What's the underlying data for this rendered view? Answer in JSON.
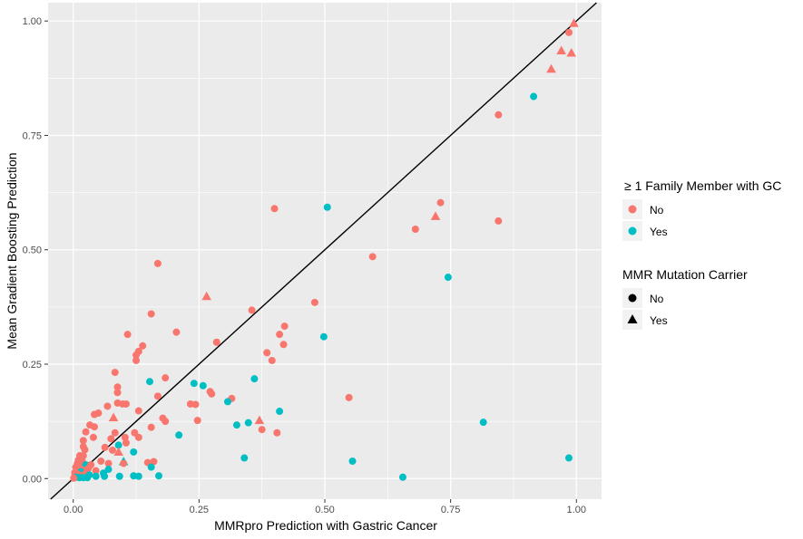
{
  "chart_data": {
    "type": "scatter",
    "xlabel": "MMRpro Prediction with Gastric Cancer",
    "ylabel": "Mean Gradient Boosting Prediction",
    "xlim": [
      -0.05,
      1.05
    ],
    "ylim": [
      -0.045,
      1.04
    ],
    "x_ticks": [
      0.0,
      0.25,
      0.5,
      0.75,
      1.0
    ],
    "x_tick_labels": [
      "0.00",
      "0.25",
      "0.50",
      "0.75",
      "1.00"
    ],
    "y_ticks": [
      0.0,
      0.25,
      0.5,
      0.75,
      1.0
    ],
    "y_tick_labels": [
      "0.00",
      "0.25",
      "0.50",
      "0.75",
      "1.00"
    ],
    "grid": true,
    "reference_line": "y = x",
    "legend_placement": "right",
    "colors": {
      "No": "#F8766D",
      "Yes": "#00BFC4",
      "panel": "#EBEBEB",
      "grid": "#FFFFFF"
    },
    "legends": [
      {
        "title": "≥ 1 Family Member with GC",
        "kind": "color",
        "entries": [
          {
            "label": "No",
            "color": "#F8766D"
          },
          {
            "label": "Yes",
            "color": "#00BFC4"
          }
        ]
      },
      {
        "title": "MMR Mutation Carrier",
        "kind": "shape",
        "entries": [
          {
            "label": "No",
            "shape": "circle"
          },
          {
            "label": "Yes",
            "shape": "triangle"
          }
        ]
      }
    ],
    "points": [
      {
        "x": 0.995,
        "y": 0.995,
        "fam": "No",
        "mmr": "Yes"
      },
      {
        "x": 0.985,
        "y": 0.975,
        "fam": "No",
        "mmr": "No"
      },
      {
        "x": 0.97,
        "y": 0.935,
        "fam": "No",
        "mmr": "Yes"
      },
      {
        "x": 0.99,
        "y": 0.93,
        "fam": "No",
        "mmr": "Yes"
      },
      {
        "x": 0.95,
        "y": 0.895,
        "fam": "No",
        "mmr": "Yes"
      },
      {
        "x": 0.845,
        "y": 0.795,
        "fam": "No",
        "mmr": "No"
      },
      {
        "x": 0.915,
        "y": 0.835,
        "fam": "Yes",
        "mmr": "No"
      },
      {
        "x": 0.73,
        "y": 0.603,
        "fam": "No",
        "mmr": "No"
      },
      {
        "x": 0.72,
        "y": 0.573,
        "fam": "No",
        "mmr": "Yes"
      },
      {
        "x": 0.845,
        "y": 0.563,
        "fam": "No",
        "mmr": "No"
      },
      {
        "x": 0.68,
        "y": 0.545,
        "fam": "No",
        "mmr": "No"
      },
      {
        "x": 0.595,
        "y": 0.485,
        "fam": "No",
        "mmr": "No"
      },
      {
        "x": 0.505,
        "y": 0.593,
        "fam": "Yes",
        "mmr": "No"
      },
      {
        "x": 0.4,
        "y": 0.59,
        "fam": "No",
        "mmr": "No"
      },
      {
        "x": 0.745,
        "y": 0.44,
        "fam": "Yes",
        "mmr": "No"
      },
      {
        "x": 0.168,
        "y": 0.47,
        "fam": "No",
        "mmr": "No"
      },
      {
        "x": 0.265,
        "y": 0.398,
        "fam": "No",
        "mmr": "Yes"
      },
      {
        "x": 0.48,
        "y": 0.385,
        "fam": "No",
        "mmr": "No"
      },
      {
        "x": 0.355,
        "y": 0.368,
        "fam": "No",
        "mmr": "No"
      },
      {
        "x": 0.155,
        "y": 0.36,
        "fam": "No",
        "mmr": "No"
      },
      {
        "x": 0.42,
        "y": 0.333,
        "fam": "No",
        "mmr": "No"
      },
      {
        "x": 0.205,
        "y": 0.32,
        "fam": "No",
        "mmr": "No"
      },
      {
        "x": 0.108,
        "y": 0.315,
        "fam": "No",
        "mmr": "No"
      },
      {
        "x": 0.41,
        "y": 0.315,
        "fam": "No",
        "mmr": "No"
      },
      {
        "x": 0.498,
        "y": 0.31,
        "fam": "Yes",
        "mmr": "No"
      },
      {
        "x": 0.285,
        "y": 0.298,
        "fam": "No",
        "mmr": "No"
      },
      {
        "x": 0.418,
        "y": 0.293,
        "fam": "No",
        "mmr": "No"
      },
      {
        "x": 0.138,
        "y": 0.29,
        "fam": "No",
        "mmr": "No"
      },
      {
        "x": 0.385,
        "y": 0.275,
        "fam": "No",
        "mmr": "No"
      },
      {
        "x": 0.13,
        "y": 0.278,
        "fam": "No",
        "mmr": "No"
      },
      {
        "x": 0.125,
        "y": 0.27,
        "fam": "No",
        "mmr": "No"
      },
      {
        "x": 0.125,
        "y": 0.258,
        "fam": "No",
        "mmr": "No"
      },
      {
        "x": 0.395,
        "y": 0.258,
        "fam": "No",
        "mmr": "No"
      },
      {
        "x": 0.083,
        "y": 0.232,
        "fam": "No",
        "mmr": "No"
      },
      {
        "x": 0.183,
        "y": 0.22,
        "fam": "No",
        "mmr": "No"
      },
      {
        "x": 0.36,
        "y": 0.218,
        "fam": "Yes",
        "mmr": "No"
      },
      {
        "x": 0.152,
        "y": 0.212,
        "fam": "Yes",
        "mmr": "No"
      },
      {
        "x": 0.24,
        "y": 0.208,
        "fam": "Yes",
        "mmr": "No"
      },
      {
        "x": 0.258,
        "y": 0.203,
        "fam": "Yes",
        "mmr": "No"
      },
      {
        "x": 0.088,
        "y": 0.2,
        "fam": "No",
        "mmr": "No"
      },
      {
        "x": 0.088,
        "y": 0.188,
        "fam": "No",
        "mmr": "No"
      },
      {
        "x": 0.272,
        "y": 0.19,
        "fam": "No",
        "mmr": "No"
      },
      {
        "x": 0.275,
        "y": 0.185,
        "fam": "No",
        "mmr": "No"
      },
      {
        "x": 0.168,
        "y": 0.18,
        "fam": "No",
        "mmr": "No"
      },
      {
        "x": 0.315,
        "y": 0.175,
        "fam": "No",
        "mmr": "No"
      },
      {
        "x": 0.548,
        "y": 0.177,
        "fam": "No",
        "mmr": "No"
      },
      {
        "x": 0.307,
        "y": 0.168,
        "fam": "Yes",
        "mmr": "No"
      },
      {
        "x": 0.088,
        "y": 0.165,
        "fam": "No",
        "mmr": "No"
      },
      {
        "x": 0.098,
        "y": 0.163,
        "fam": "No",
        "mmr": "No"
      },
      {
        "x": 0.105,
        "y": 0.163,
        "fam": "No",
        "mmr": "No"
      },
      {
        "x": 0.233,
        "y": 0.163,
        "fam": "No",
        "mmr": "No"
      },
      {
        "x": 0.243,
        "y": 0.162,
        "fam": "No",
        "mmr": "No"
      },
      {
        "x": 0.068,
        "y": 0.158,
        "fam": "No",
        "mmr": "No"
      },
      {
        "x": 0.13,
        "y": 0.148,
        "fam": "No",
        "mmr": "No"
      },
      {
        "x": 0.41,
        "y": 0.147,
        "fam": "Yes",
        "mmr": "No"
      },
      {
        "x": 0.05,
        "y": 0.143,
        "fam": "No",
        "mmr": "No"
      },
      {
        "x": 0.042,
        "y": 0.14,
        "fam": "No",
        "mmr": "No"
      },
      {
        "x": 0.08,
        "y": 0.133,
        "fam": "No",
        "mmr": "Yes"
      },
      {
        "x": 0.178,
        "y": 0.132,
        "fam": "No",
        "mmr": "No"
      },
      {
        "x": 0.183,
        "y": 0.125,
        "fam": "No",
        "mmr": "No"
      },
      {
        "x": 0.247,
        "y": 0.127,
        "fam": "No",
        "mmr": "No"
      },
      {
        "x": 0.37,
        "y": 0.127,
        "fam": "No",
        "mmr": "Yes"
      },
      {
        "x": 0.815,
        "y": 0.123,
        "fam": "Yes",
        "mmr": "No"
      },
      {
        "x": 0.348,
        "y": 0.122,
        "fam": "Yes",
        "mmr": "No"
      },
      {
        "x": 0.325,
        "y": 0.117,
        "fam": "Yes",
        "mmr": "No"
      },
      {
        "x": 0.033,
        "y": 0.117,
        "fam": "No",
        "mmr": "No"
      },
      {
        "x": 0.042,
        "y": 0.113,
        "fam": "No",
        "mmr": "No"
      },
      {
        "x": 0.155,
        "y": 0.112,
        "fam": "No",
        "mmr": "No"
      },
      {
        "x": 0.375,
        "y": 0.107,
        "fam": "No",
        "mmr": "No"
      },
      {
        "x": 0.025,
        "y": 0.102,
        "fam": "No",
        "mmr": "No"
      },
      {
        "x": 0.405,
        "y": 0.1,
        "fam": "No",
        "mmr": "No"
      },
      {
        "x": 0.083,
        "y": 0.1,
        "fam": "No",
        "mmr": "No"
      },
      {
        "x": 0.122,
        "y": 0.1,
        "fam": "No",
        "mmr": "No"
      },
      {
        "x": 0.21,
        "y": 0.095,
        "fam": "Yes",
        "mmr": "No"
      },
      {
        "x": 0.04,
        "y": 0.09,
        "fam": "No",
        "mmr": "No"
      },
      {
        "x": 0.103,
        "y": 0.09,
        "fam": "No",
        "mmr": "No"
      },
      {
        "x": 0.13,
        "y": 0.09,
        "fam": "No",
        "mmr": "No"
      },
      {
        "x": 0.075,
        "y": 0.087,
        "fam": "No",
        "mmr": "No"
      },
      {
        "x": 0.02,
        "y": 0.083,
        "fam": "No",
        "mmr": "No"
      },
      {
        "x": 0.105,
        "y": 0.078,
        "fam": "No",
        "mmr": "No"
      },
      {
        "x": 0.09,
        "y": 0.073,
        "fam": "Yes",
        "mmr": "No"
      },
      {
        "x": 0.02,
        "y": 0.07,
        "fam": "No",
        "mmr": "No"
      },
      {
        "x": 0.063,
        "y": 0.068,
        "fam": "No",
        "mmr": "No"
      },
      {
        "x": 0.023,
        "y": 0.063,
        "fam": "No",
        "mmr": "No"
      },
      {
        "x": 0.078,
        "y": 0.062,
        "fam": "No",
        "mmr": "No"
      },
      {
        "x": 0.12,
        "y": 0.058,
        "fam": "Yes",
        "mmr": "No"
      },
      {
        "x": 0.09,
        "y": 0.058,
        "fam": "No",
        "mmr": "Yes"
      },
      {
        "x": 0.013,
        "y": 0.05,
        "fam": "No",
        "mmr": "No"
      },
      {
        "x": 0.02,
        "y": 0.05,
        "fam": "No",
        "mmr": "No"
      },
      {
        "x": 0.015,
        "y": 0.045,
        "fam": "No",
        "mmr": "No"
      },
      {
        "x": 0.34,
        "y": 0.045,
        "fam": "Yes",
        "mmr": "No"
      },
      {
        "x": 0.985,
        "y": 0.045,
        "fam": "Yes",
        "mmr": "No"
      },
      {
        "x": 0.01,
        "y": 0.04,
        "fam": "No",
        "mmr": "No"
      },
      {
        "x": 0.018,
        "y": 0.038,
        "fam": "No",
        "mmr": "No"
      },
      {
        "x": 0.055,
        "y": 0.038,
        "fam": "No",
        "mmr": "No"
      },
      {
        "x": 0.555,
        "y": 0.038,
        "fam": "Yes",
        "mmr": "No"
      },
      {
        "x": 0.1,
        "y": 0.037,
        "fam": "Yes",
        "mmr": "Yes"
      },
      {
        "x": 0.16,
        "y": 0.037,
        "fam": "No",
        "mmr": "No"
      },
      {
        "x": 0.148,
        "y": 0.035,
        "fam": "No",
        "mmr": "No"
      },
      {
        "x": 0.1,
        "y": 0.033,
        "fam": "No",
        "mmr": "No"
      },
      {
        "x": 0.07,
        "y": 0.033,
        "fam": "No",
        "mmr": "No"
      },
      {
        "x": 0.008,
        "y": 0.032,
        "fam": "No",
        "mmr": "No"
      },
      {
        "x": 0.012,
        "y": 0.03,
        "fam": "No",
        "mmr": "No"
      },
      {
        "x": 0.025,
        "y": 0.03,
        "fam": "Yes",
        "mmr": "No"
      },
      {
        "x": 0.035,
        "y": 0.03,
        "fam": "No",
        "mmr": "No"
      },
      {
        "x": 0.155,
        "y": 0.025,
        "fam": "Yes",
        "mmr": "No"
      },
      {
        "x": 0.005,
        "y": 0.025,
        "fam": "No",
        "mmr": "No"
      },
      {
        "x": 0.03,
        "y": 0.022,
        "fam": "No",
        "mmr": "No"
      },
      {
        "x": 0.07,
        "y": 0.02,
        "fam": "Yes",
        "mmr": "No"
      },
      {
        "x": 0.01,
        "y": 0.02,
        "fam": "No",
        "mmr": "No"
      },
      {
        "x": 0.02,
        "y": 0.018,
        "fam": "No",
        "mmr": "No"
      },
      {
        "x": 0.045,
        "y": 0.017,
        "fam": "No",
        "mmr": "No"
      },
      {
        "x": 0.015,
        "y": 0.015,
        "fam": "Yes",
        "mmr": "No"
      },
      {
        "x": 0.003,
        "y": 0.013,
        "fam": "No",
        "mmr": "No"
      },
      {
        "x": 0.025,
        "y": 0.012,
        "fam": "No",
        "mmr": "No"
      },
      {
        "x": 0.06,
        "y": 0.012,
        "fam": "Yes",
        "mmr": "No"
      },
      {
        "x": 0.008,
        "y": 0.01,
        "fam": "No",
        "mmr": "No"
      },
      {
        "x": 0.032,
        "y": 0.008,
        "fam": "Yes",
        "mmr": "No"
      },
      {
        "x": 0.015,
        "y": 0.007,
        "fam": "No",
        "mmr": "No"
      },
      {
        "x": 0.12,
        "y": 0.006,
        "fam": "Yes",
        "mmr": "No"
      },
      {
        "x": 0.17,
        "y": 0.006,
        "fam": "Yes",
        "mmr": "No"
      },
      {
        "x": 0.13,
        "y": 0.005,
        "fam": "Yes",
        "mmr": "No"
      },
      {
        "x": 0.092,
        "y": 0.005,
        "fam": "Yes",
        "mmr": "No"
      },
      {
        "x": 0.045,
        "y": 0.005,
        "fam": "Yes",
        "mmr": "No"
      },
      {
        "x": 0.062,
        "y": 0.005,
        "fam": "Yes",
        "mmr": "No"
      },
      {
        "x": 0.003,
        "y": 0.005,
        "fam": "No",
        "mmr": "No"
      },
      {
        "x": 0.005,
        "y": 0.003,
        "fam": "Yes",
        "mmr": "No"
      },
      {
        "x": 0.655,
        "y": 0.003,
        "fam": "Yes",
        "mmr": "No"
      },
      {
        "x": 0.012,
        "y": 0.002,
        "fam": "Yes",
        "mmr": "No"
      },
      {
        "x": 0.02,
        "y": 0.002,
        "fam": "Yes",
        "mmr": "No"
      },
      {
        "x": 0.028,
        "y": 0.002,
        "fam": "Yes",
        "mmr": "No"
      },
      {
        "x": 0.001,
        "y": 0.001,
        "fam": "No",
        "mmr": "No"
      }
    ]
  }
}
